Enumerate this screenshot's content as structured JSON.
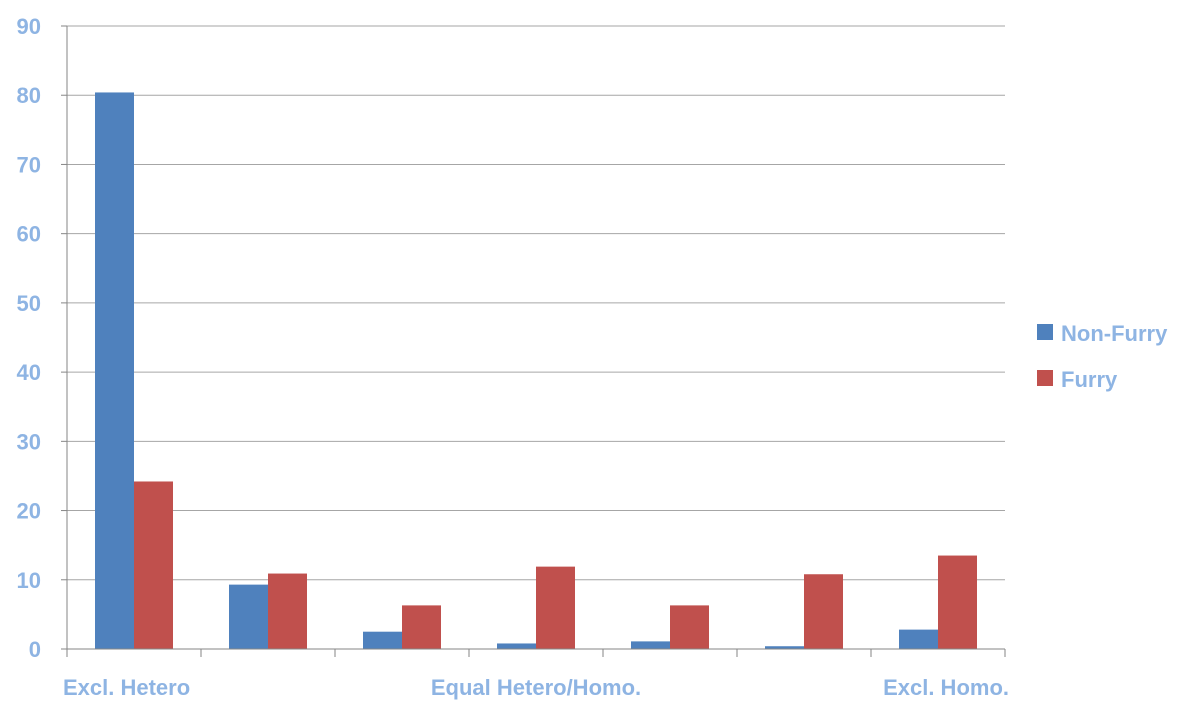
{
  "chart_data": {
    "type": "bar",
    "title": "",
    "xlabel": "",
    "ylabel": "",
    "ylim": [
      0,
      90
    ],
    "yticks": [
      0,
      10,
      20,
      30,
      40,
      50,
      60,
      70,
      80,
      90
    ],
    "grid": true,
    "legend_position": "right",
    "categories": [
      "Excl. Hetero",
      "",
      "",
      "Equal Hetero/Homo.",
      "",
      "",
      "Excl. Homo."
    ],
    "series": [
      {
        "name": "Non-Furry",
        "color": "#4F81BD",
        "values": [
          80.4,
          9.3,
          2.5,
          0.8,
          1.1,
          0.4,
          2.8
        ]
      },
      {
        "name": "Furry",
        "color": "#C0504D",
        "values": [
          24.2,
          10.9,
          6.3,
          11.9,
          6.3,
          10.8,
          13.5
        ]
      }
    ],
    "label_color": "#8EB4E3"
  }
}
